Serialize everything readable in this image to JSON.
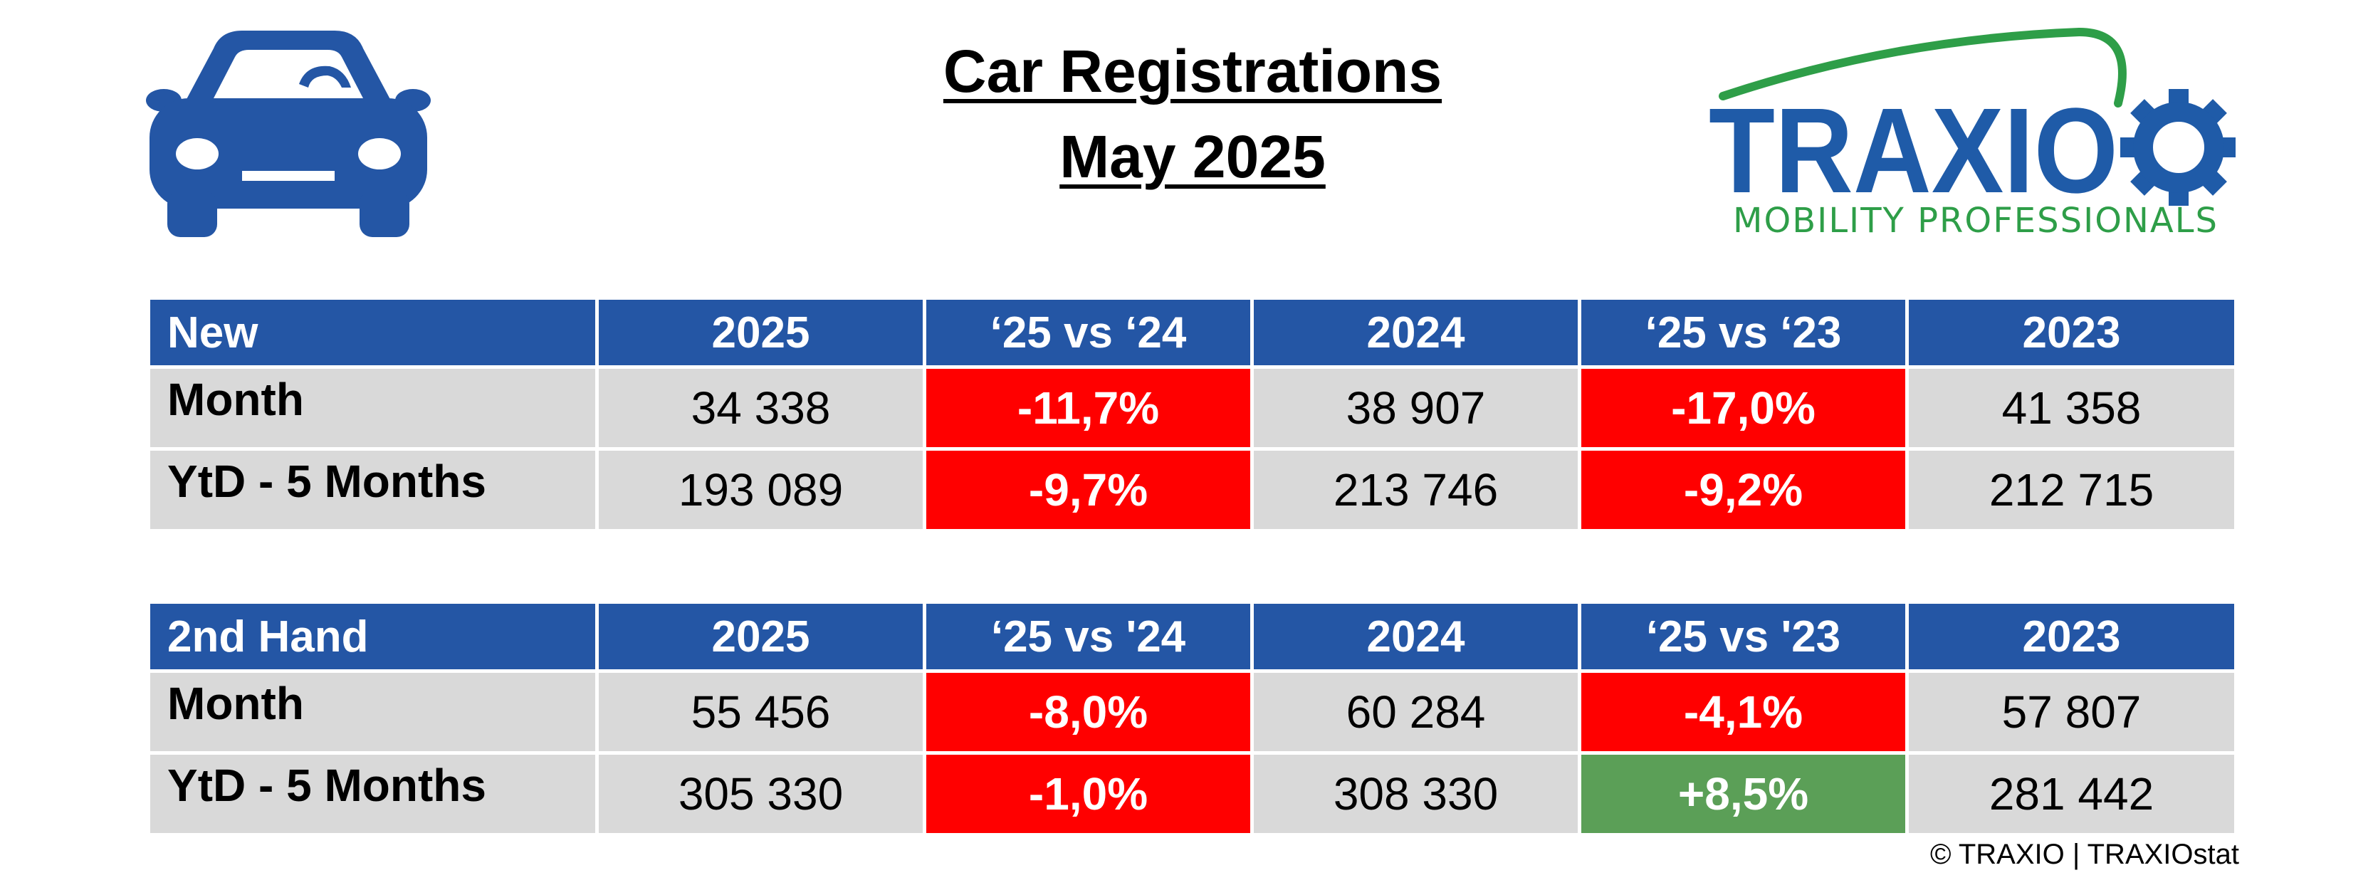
{
  "title_line1": "Car Registrations",
  "title_line2": "May 2025",
  "logo": {
    "brand": "TRAXIO",
    "tagline": "MOBILITY PROFESSIONALS",
    "brand_color": "#1f5ba8",
    "accent_color": "#2e9e48"
  },
  "icons": {
    "car": "car-icon",
    "gear": "gear-icon"
  },
  "colors": {
    "header": "#2456a5",
    "cell": "#d9d9d9",
    "negative": "#ff0000",
    "positive": "#5b9f57"
  },
  "tables": [
    {
      "headers": [
        "New",
        "2025",
        "‘25 vs ‘24",
        "2024",
        "‘25 vs ‘23",
        "2023"
      ],
      "rows": [
        {
          "label": "Month",
          "cells": [
            "34 338",
            "-11,7%",
            "38 907",
            "-17,0%",
            "41 358"
          ]
        },
        {
          "label": "YtD - 5 Months",
          "cells": [
            "193 089",
            "-9,7%",
            "213 746",
            "-9,2%",
            "212 715"
          ]
        }
      ]
    },
    {
      "headers": [
        "2nd Hand",
        "2025",
        "‘25 vs '24",
        "2024",
        "‘25 vs '23",
        "2023"
      ],
      "rows": [
        {
          "label": "Month",
          "cells": [
            "55 456",
            "-8,0%",
            "60 284",
            "-4,1%",
            "57 807"
          ]
        },
        {
          "label": "YtD - 5 Months",
          "cells": [
            "305 330",
            "-1,0%",
            "308 330",
            "+8,5%",
            "281 442"
          ]
        }
      ]
    }
  ],
  "footer": "© TRAXIO | TRAXIOstat"
}
